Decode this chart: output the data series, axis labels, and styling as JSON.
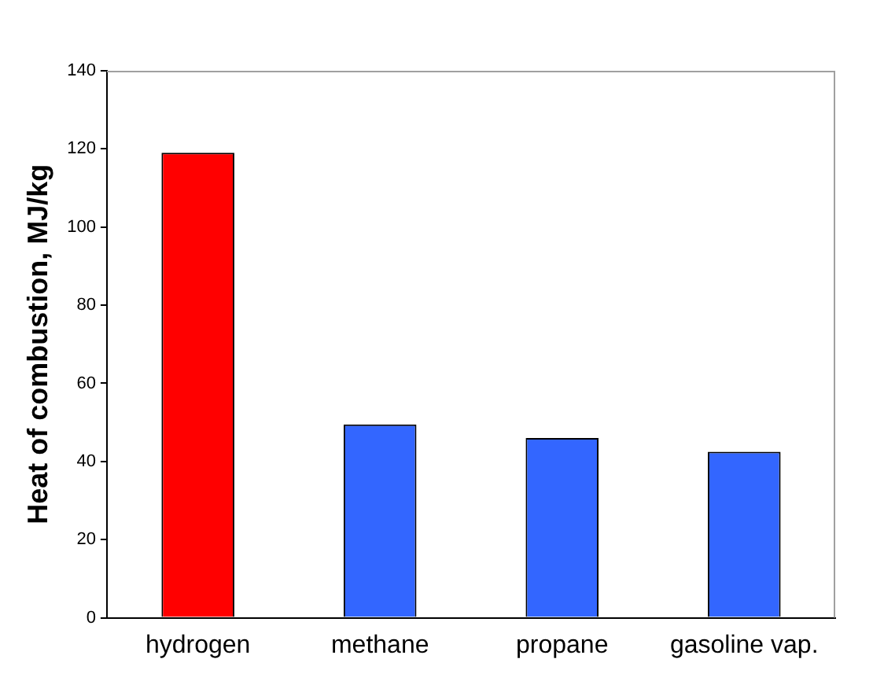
{
  "chart_data": {
    "type": "bar",
    "ylabel": "Heat of combustion, MJ/kg",
    "categories": [
      "hydrogen",
      "methane",
      "propane",
      "gasoline vap."
    ],
    "values": [
      119,
      49.5,
      46,
      42.5
    ],
    "colors": [
      "#ff0000",
      "#3366ff",
      "#3366ff",
      "#3366ff"
    ],
    "ylim": [
      0,
      140
    ],
    "yticks": [
      0,
      20,
      40,
      60,
      80,
      100,
      120,
      140
    ],
    "grid": false,
    "legend": false
  }
}
